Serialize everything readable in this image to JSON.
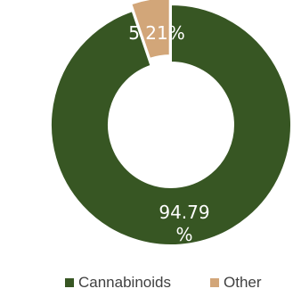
{
  "chart_data": {
    "type": "pie",
    "donut": true,
    "labels": [
      "Cannabinoids",
      "Other"
    ],
    "values": [
      94.79,
      5.21
    ],
    "data_labels": [
      "94.79%",
      "5.21%"
    ],
    "colors": [
      "#375623",
      "#d2a679"
    ],
    "explode": [
      false,
      true
    ],
    "legend": {
      "position": "bottom-right",
      "entries": [
        "Cannabinoids",
        "Other"
      ]
    }
  }
}
